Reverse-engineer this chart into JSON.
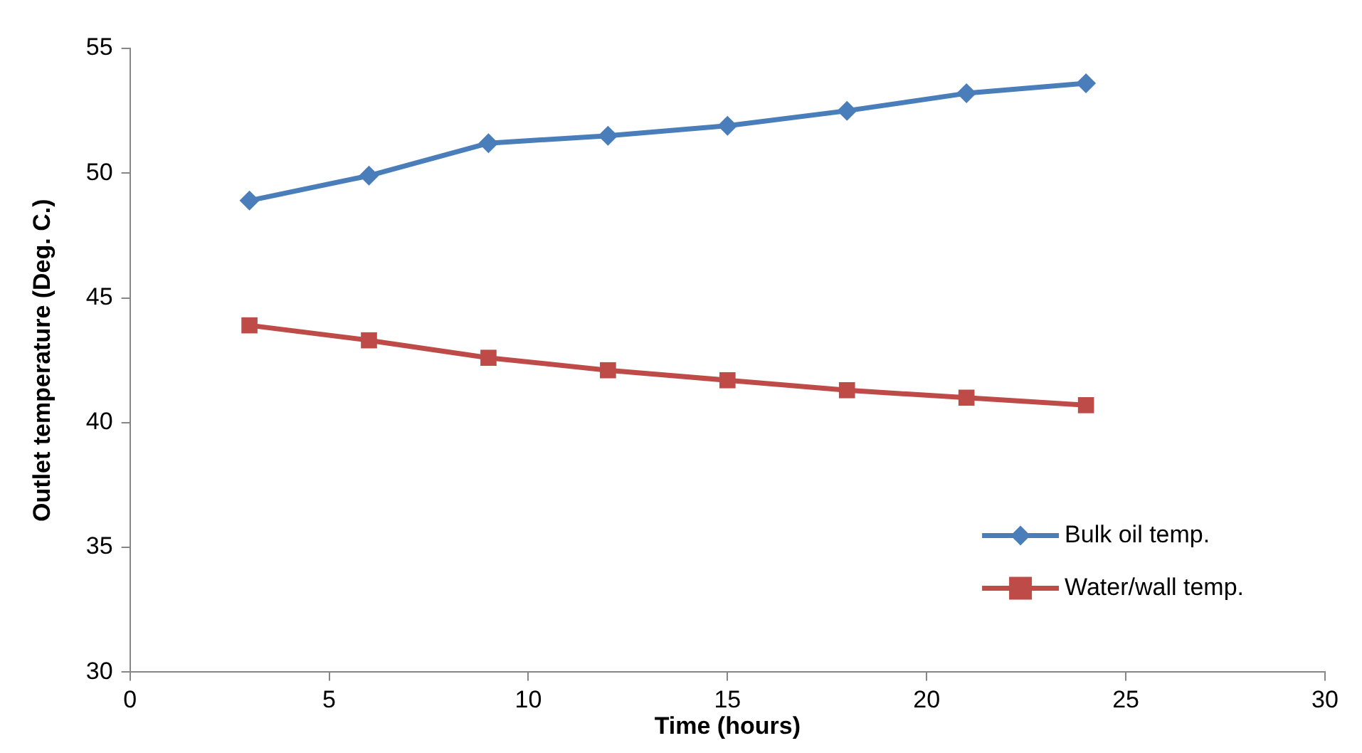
{
  "chart_data": {
    "type": "line",
    "xlabel": "Time (hours)",
    "ylabel": "Outlet temperature (Deg. C.)",
    "x": [
      3,
      6,
      9,
      12,
      15,
      18,
      21,
      24
    ],
    "series": [
      {
        "name": "Bulk oil temp.",
        "color": "#4a7ebb",
        "marker": "diamond",
        "values": [
          48.9,
          49.9,
          51.2,
          51.5,
          51.9,
          52.5,
          53.2,
          53.6
        ]
      },
      {
        "name": "Water/wall temp.",
        "color": "#be4b48",
        "marker": "square",
        "values": [
          43.9,
          43.3,
          42.6,
          42.1,
          41.7,
          41.3,
          41.0,
          40.7
        ]
      }
    ],
    "xlim": [
      0,
      30
    ],
    "xticks": [
      0,
      5,
      10,
      15,
      20,
      25,
      30
    ],
    "ylim": [
      30,
      55
    ],
    "yticks": [
      30,
      35,
      40,
      45,
      50,
      55
    ],
    "grid": false,
    "legend": "bottom right",
    "line_style": "solid"
  }
}
